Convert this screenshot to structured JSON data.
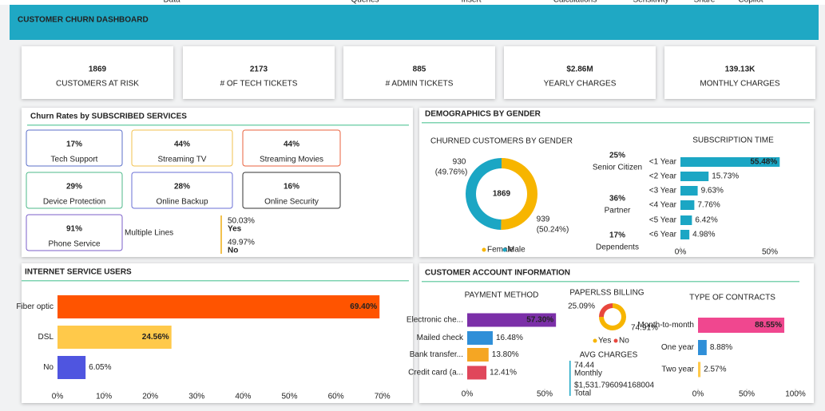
{
  "menu": [
    "Data",
    "Queries",
    "Insert",
    "Calculations",
    "Sensitivity",
    "Share",
    "Copilot"
  ],
  "header": {
    "title": "CUSTOMER CHURN DASHBOARD"
  },
  "kpis": [
    {
      "value": "1869",
      "label": "CUSTOMERS AT RISK"
    },
    {
      "value": "2173",
      "label": "# OF TECH TICKETS"
    },
    {
      "value": "885",
      "label": "# ADMIN TICKETS"
    },
    {
      "value": "$2.86M",
      "label": "YEARLY CHARGES"
    },
    {
      "value": "139.13K",
      "label": "MONTHLY CHARGES"
    }
  ],
  "services": {
    "title": "Churn Rates by SUBSCRIBED SERVICES",
    "cards": [
      {
        "value": "17%",
        "label": "Tech Support",
        "color": "#5b6fc9"
      },
      {
        "value": "44%",
        "label": "Streaming TV",
        "color": "#f2c14e"
      },
      {
        "value": "44%",
        "label": "Streaming Movies",
        "color": "#e8603c"
      },
      {
        "value": "29%",
        "label": "Device Protection",
        "color": "#4cb88a"
      },
      {
        "value": "28%",
        "label": "Online Backup",
        "color": "#6a6fd6"
      },
      {
        "value": "16%",
        "label": "Online Security",
        "color": "#333333"
      },
      {
        "value": "91%",
        "label": "Phone Service",
        "color": "#7b5fc9"
      }
    ],
    "multiple_lines": {
      "label": "Multiple Lines",
      "items": [
        {
          "value": "50.03%",
          "label": "Yes"
        },
        {
          "value": "49.97%",
          "label": "No"
        }
      ]
    }
  },
  "demographics": {
    "title": "DEMOGRAPHICS BY GENDER",
    "gender": {
      "type": "donut",
      "title": "CHURNED CUSTOMERS BY GENDER",
      "center_label": "1869",
      "categories": [
        "Female",
        "Male"
      ],
      "values": [
        939,
        930
      ],
      "percent_labels": [
        "(50.24%)",
        "(49.76%)"
      ],
      "colors": [
        "#f7b500",
        "#1ba6c4"
      ]
    },
    "stats": [
      {
        "value": "25%",
        "label": "Senior Citizen"
      },
      {
        "value": "36%",
        "label": "Partner"
      },
      {
        "value": "17%",
        "label": "Dependents"
      }
    ],
    "subscription": {
      "type": "hbar",
      "title": "SUBSCRIPTION TIME",
      "categories": [
        "<1 Year",
        "<2 Year",
        "<3 Year",
        "<4 Year",
        "<5 Year",
        "<6 Year"
      ],
      "values": [
        55.48,
        15.73,
        9.63,
        7.76,
        6.42,
        4.98
      ],
      "value_labels": [
        "55.48%",
        "15.73%",
        "9.63%",
        "7.76%",
        "6.42%",
        "4.98%"
      ],
      "colors": [
        "#1ba6c4",
        "#1ba6c4",
        "#1ba6c4",
        "#1ba6c4",
        "#1ba6c4",
        "#1ba6c4"
      ],
      "xlim": [
        0,
        60
      ],
      "xticks": [
        {
          "value": 0,
          "label": "0%"
        },
        {
          "value": 50,
          "label": "50%"
        }
      ]
    }
  },
  "internet": {
    "type": "hbar",
    "title": "INTERNET SERVICE USERS",
    "categories": [
      "Fiber optic",
      "DSL",
      "No"
    ],
    "values": [
      69.4,
      24.56,
      6.05
    ],
    "value_labels": [
      "69.40%",
      "24.56%",
      "6.05%"
    ],
    "colors": [
      "#ff5400",
      "#ffc94a",
      "#4f55e0"
    ],
    "xlim": [
      0,
      75
    ],
    "xticks": [
      {
        "value": 0,
        "label": "0%"
      },
      {
        "value": 10,
        "label": "10%"
      },
      {
        "value": 20,
        "label": "20%"
      },
      {
        "value": 30,
        "label": "30%"
      },
      {
        "value": 40,
        "label": "40%"
      },
      {
        "value": 50,
        "label": "50%"
      },
      {
        "value": 60,
        "label": "60%"
      },
      {
        "value": 70,
        "label": "70%"
      }
    ]
  },
  "account": {
    "title": "CUSTOMER ACCOUNT INFORMATION",
    "payment": {
      "type": "hbar",
      "title": "PAYMENT METHOD",
      "categories": [
        "Electronic che...",
        "Mailed check",
        "Bank transfer...",
        "Credit card (a..."
      ],
      "values": [
        57.3,
        16.48,
        13.8,
        12.41
      ],
      "value_labels": [
        "57.30%",
        "16.48%",
        "13.80%",
        "12.41%"
      ],
      "colors": [
        "#7b2fa8",
        "#2f8fd8",
        "#f5a623",
        "#e0475b"
      ],
      "xlim": [
        0,
        60
      ],
      "xticks": [
        {
          "value": 0,
          "label": "0%"
        },
        {
          "value": 50,
          "label": "50%"
        }
      ]
    },
    "paperless": {
      "type": "donut",
      "title": "PAPERLSS BILLING",
      "categories": [
        "Yes",
        "No"
      ],
      "values": [
        74.91,
        25.09
      ],
      "value_labels": [
        "74.91%",
        "25.09%"
      ],
      "colors": [
        "#f7b500",
        "#e8473d"
      ]
    },
    "avg_charges": {
      "title": "AVG CHARGES",
      "monthly": {
        "value": "74.44",
        "label": "Monthly"
      },
      "total": {
        "value": "$1,531.796094168004",
        "label": "Total"
      }
    },
    "contracts": {
      "type": "hbar",
      "title": "TYPE OF CONTRACTS",
      "categories": [
        "Month-to-month",
        "One year",
        "Two year"
      ],
      "values": [
        88.55,
        8.88,
        2.57
      ],
      "value_labels": [
        "88.55%",
        "8.88%",
        "2.57%"
      ],
      "colors": [
        "#f0478f",
        "#2f8fd8",
        "#ffc94a"
      ],
      "xlim": [
        0,
        100
      ],
      "xticks": [
        {
          "value": 0,
          "label": "0%"
        },
        {
          "value": 50,
          "label": "50%"
        },
        {
          "value": 100,
          "label": "100%"
        }
      ]
    }
  }
}
